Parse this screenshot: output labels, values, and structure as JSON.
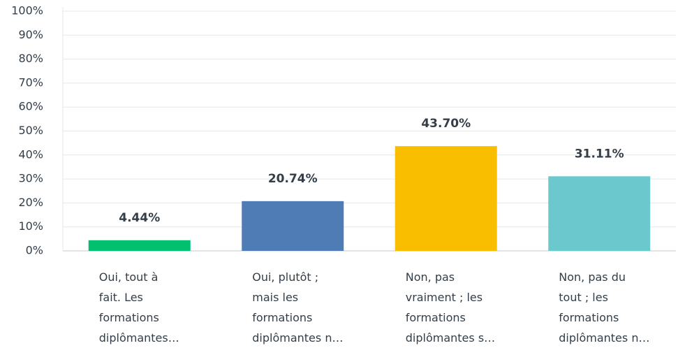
{
  "chart_data": {
    "type": "bar",
    "categories": [
      "Oui, tout à\nfait. Les\nformations\ndiplômantes…",
      "Oui, plutôt ;\nmais les\nformations\ndiplômantes n…",
      "Non, pas\nvraiment ; les\nformations\ndiplômantes s…",
      "Non, pas du\ntout ; les\nformations\ndiplômantes n…"
    ],
    "values": [
      4.44,
      20.74,
      43.7,
      31.11
    ],
    "value_labels": [
      "4.44%",
      "20.74%",
      "43.70%",
      "31.11%"
    ],
    "colors": [
      "#00bf6f",
      "#507cb6",
      "#f9be00",
      "#6bc8cd"
    ],
    "ylim": [
      0,
      100
    ],
    "yticks": [
      {
        "value": 0,
        "label": "0%"
      },
      {
        "value": 10,
        "label": "10%"
      },
      {
        "value": 20,
        "label": "20%"
      },
      {
        "value": 30,
        "label": "30%"
      },
      {
        "value": 40,
        "label": "40%"
      },
      {
        "value": 50,
        "label": "50%"
      },
      {
        "value": 60,
        "label": "60%"
      },
      {
        "value": 70,
        "label": "70%"
      },
      {
        "value": 80,
        "label": "80%"
      },
      {
        "value": 90,
        "label": "90%"
      },
      {
        "value": 100,
        "label": "100%"
      }
    ],
    "grid": true
  }
}
